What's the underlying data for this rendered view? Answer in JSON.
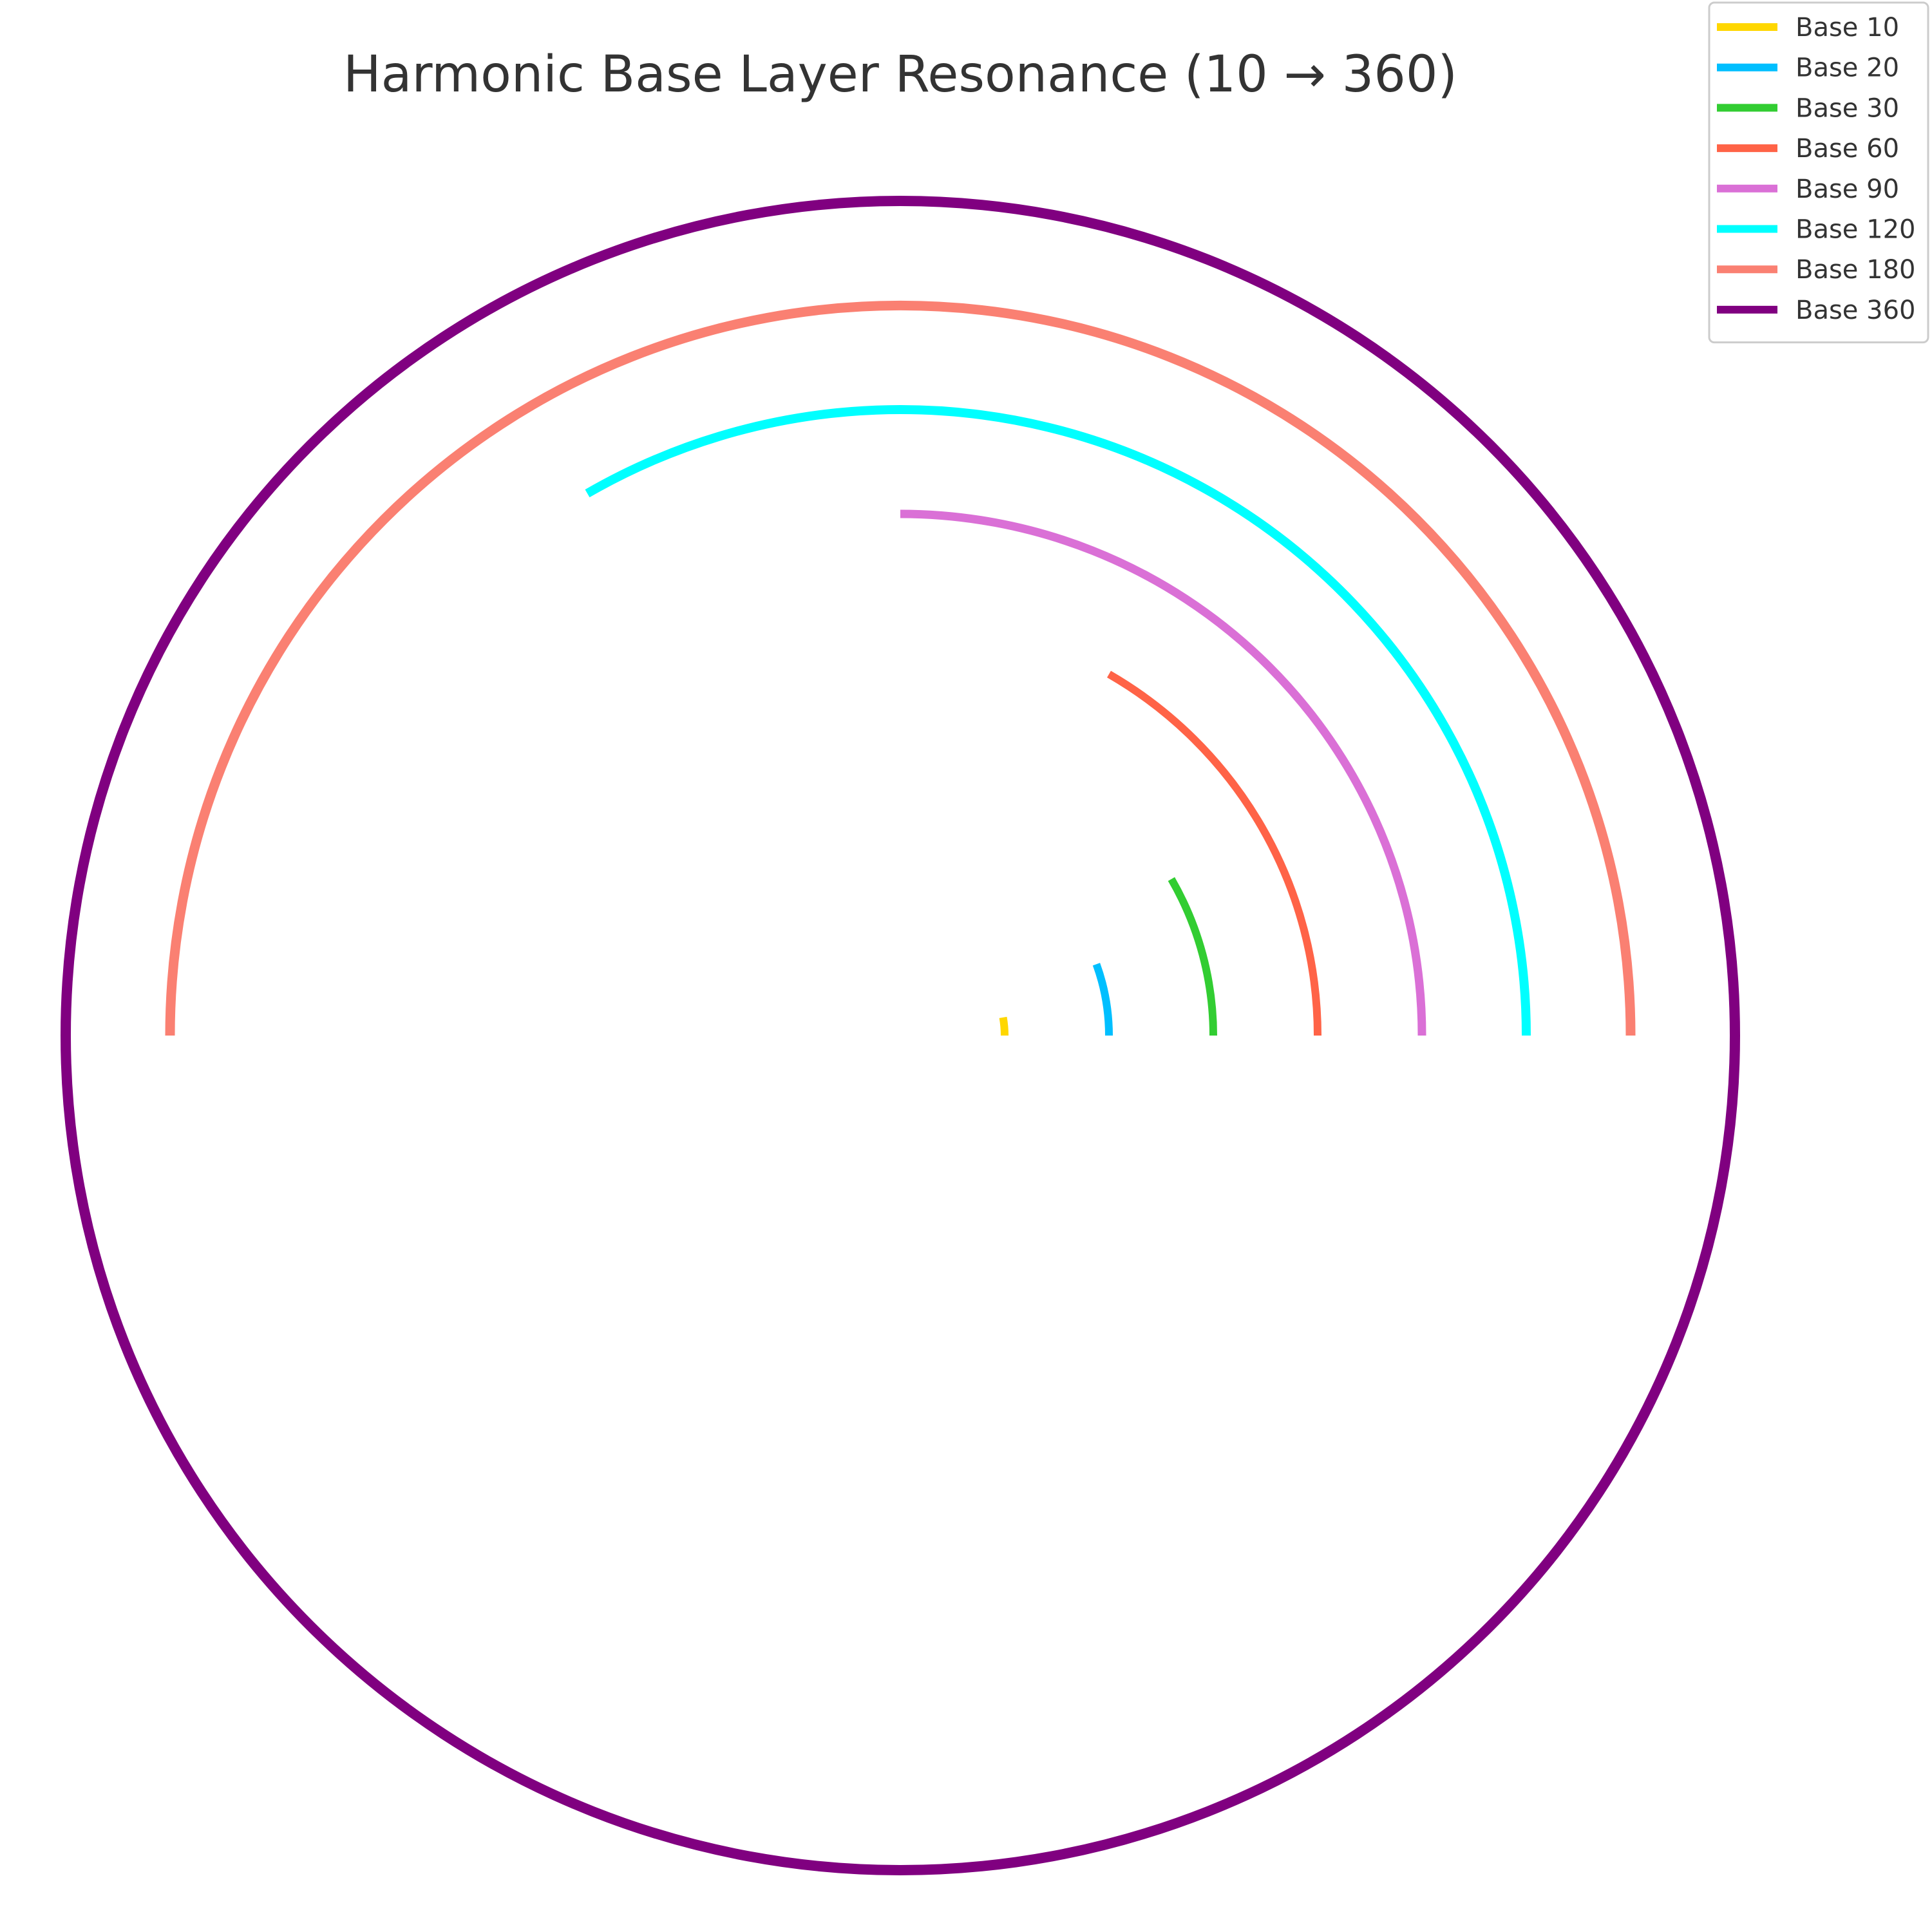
{
  "chart_data": {
    "type": "line",
    "title": "Harmonic Base Layer Resonance (10 → 360)",
    "xlabel": "",
    "ylabel": "",
    "grid": false,
    "axes_visible": false,
    "legend_position": "top-right",
    "series": [
      {
        "name": "Base 10",
        "base": 10,
        "arc_degrees": 10,
        "color": "#FFD700"
      },
      {
        "name": "Base 20",
        "base": 20,
        "arc_degrees": 20,
        "color": "#00BFFF"
      },
      {
        "name": "Base 30",
        "base": 30,
        "arc_degrees": 30,
        "color": "#32CD32"
      },
      {
        "name": "Base 60",
        "base": 60,
        "arc_degrees": 60,
        "color": "#FF6347"
      },
      {
        "name": "Base 90",
        "base": 90,
        "arc_degrees": 90,
        "color": "#DA70D6"
      },
      {
        "name": "Base 120",
        "base": 120,
        "arc_degrees": 120,
        "color": "#00FFFF"
      },
      {
        "name": "Base 180",
        "base": 180,
        "arc_degrees": 180,
        "color": "#FA8072"
      },
      {
        "name": "Base 360",
        "base": 360,
        "arc_degrees": 360,
        "color": "#800080"
      }
    ]
  }
}
